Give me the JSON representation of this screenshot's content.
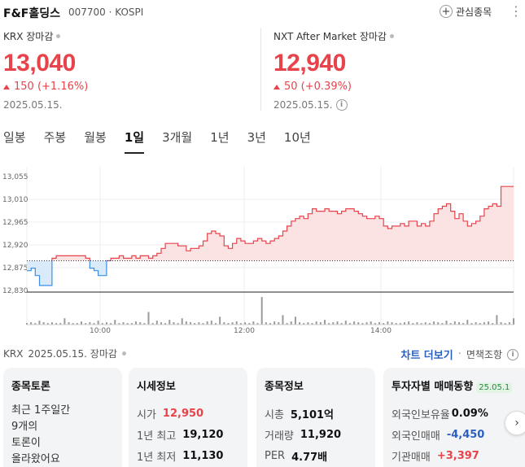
{
  "header": {
    "name": "F&F홀딩스",
    "code": "007700",
    "market": "KOSPI",
    "favorite_label": "관심종목"
  },
  "krx": {
    "label": "KRX 장마감",
    "price": "13,040",
    "change": "150 (+1.16%)",
    "date": "2025.05.15."
  },
  "nxt": {
    "label": "NXT After Market 장마감",
    "price": "12,940",
    "change": "50 (+0.39%)",
    "date": "2025.05.15."
  },
  "tabs": [
    "일봉",
    "주봉",
    "월봉",
    "1일",
    "3개월",
    "1년",
    "3년",
    "10년"
  ],
  "active_tab": "1일",
  "chart_data": {
    "type": "area",
    "baseline": 12890,
    "ylim": [
      12830,
      13060
    ],
    "y_ticks": [
      "13,055",
      "13,010",
      "12,965",
      "12,920",
      "12,875",
      "12,830"
    ],
    "x_ticks": [
      "10:00",
      "12:00",
      "14:00"
    ],
    "colors": {
      "up": "#e8434a",
      "up_fill": "#fbe3e4",
      "down": "#3a8ee6",
      "down_fill": "#d9eafb"
    },
    "price": [
      12870,
      12875,
      12860,
      12840,
      12840,
      12840,
      12895,
      12900,
      12900,
      12900,
      12900,
      12900,
      12900,
      12900,
      12895,
      12875,
      12870,
      12860,
      12860,
      12890,
      12895,
      12895,
      12900,
      12895,
      12895,
      12900,
      12895,
      12900,
      12900,
      12895,
      12900,
      12905,
      12915,
      12925,
      12925,
      12925,
      12920,
      12920,
      12910,
      12915,
      12915,
      12920,
      12930,
      12945,
      12950,
      12945,
      12940,
      12920,
      12915,
      12925,
      12935,
      12930,
      12925,
      12925,
      12930,
      12935,
      12930,
      12925,
      12930,
      12935,
      12940,
      12950,
      12960,
      12970,
      12975,
      12980,
      12975,
      12985,
      12995,
      12990,
      12990,
      12995,
      12990,
      12990,
      12985,
      12990,
      12995,
      12995,
      12990,
      12985,
      12980,
      12975,
      12975,
      12980,
      12975,
      12960,
      12955,
      12960,
      12960,
      12965,
      12960,
      12970,
      12970,
      12960,
      12965,
      12960,
      12970,
      12985,
      12995,
      13000,
      13005,
      12990,
      12975,
      12985,
      12970,
      12960,
      12965,
      12970,
      12980,
      12995,
      13000,
      13005,
      13000,
      13040,
      13040,
      13040,
      13040
    ],
    "volume": [
      2,
      3,
      2,
      5,
      3,
      2,
      3,
      2,
      2,
      8,
      3,
      2,
      2,
      4,
      2,
      3,
      2,
      5,
      2,
      3,
      2,
      6,
      2,
      3,
      2,
      2,
      4,
      3,
      2,
      16,
      2,
      5,
      3,
      2,
      6,
      3,
      2,
      8,
      4,
      3,
      2,
      3,
      2,
      4,
      5,
      2,
      10,
      3,
      2,
      3,
      4,
      2,
      3,
      2,
      4,
      2,
      35,
      3,
      2,
      4,
      3,
      12,
      2,
      4,
      10,
      3,
      2,
      3,
      2,
      4,
      3,
      6,
      2,
      3,
      4,
      2,
      5,
      2,
      4,
      3,
      2,
      3,
      4,
      2,
      3,
      2,
      4,
      3,
      2,
      2,
      3,
      4,
      2,
      3,
      2,
      3,
      2,
      4,
      3,
      2,
      5,
      2,
      4,
      3,
      2,
      6,
      2,
      3,
      2,
      3,
      4,
      2,
      12,
      3,
      2,
      3,
      8
    ]
  },
  "bottom_bar": {
    "source": "KRX",
    "date": "2025.05.15. 장마감",
    "chart_more": "차트 더보기",
    "disclaimer": "면책조항"
  },
  "cards": {
    "discussion": {
      "title": "종목토론",
      "lines": [
        "최근 1주일간",
        "9개의",
        "토론이",
        "올라왔어요"
      ]
    },
    "market": {
      "title": "시세정보",
      "rows": [
        {
          "label": "시가",
          "value": "12,950"
        },
        {
          "label": "1년 최고",
          "value": "19,120"
        },
        {
          "label": "1년 최저",
          "value": "11,130"
        }
      ]
    },
    "info": {
      "title": "종목정보",
      "rows": [
        {
          "label": "시총",
          "value": "5,101억"
        },
        {
          "label": "거래량",
          "value": "11,920"
        },
        {
          "label": "PER",
          "value": "4.77배"
        }
      ]
    },
    "investor": {
      "title": "투자자별 매매동향",
      "badge": "25.05.1",
      "rows": [
        {
          "label": "외국인보유율",
          "value": "0.09%"
        },
        {
          "label": "외국인매매",
          "value": "-4,450"
        },
        {
          "label": "기관매매",
          "value": "+3,397"
        }
      ]
    }
  }
}
